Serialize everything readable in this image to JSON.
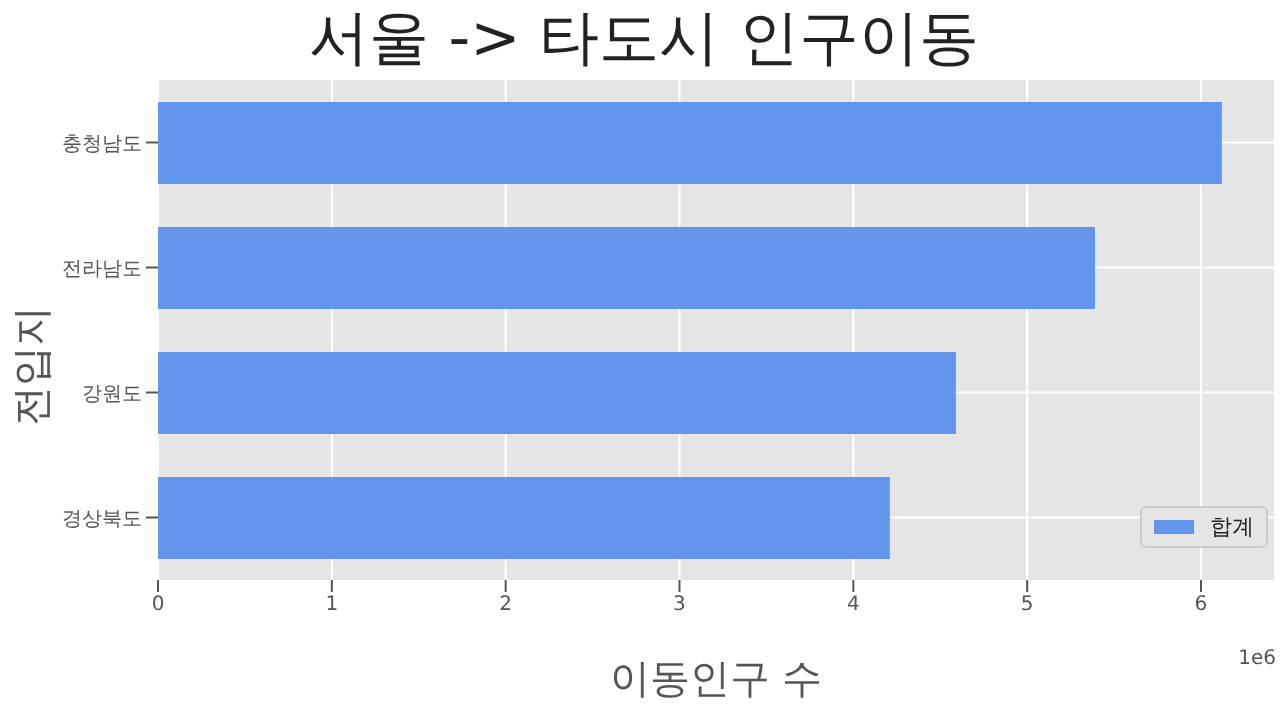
{
  "chart_data": {
    "type": "bar",
    "orientation": "horizontal",
    "title": "서울 -> 타도시 인구이동",
    "xlabel": "이동인구 수",
    "ylabel": "전입지",
    "categories": [
      "충청남도",
      "전라남도",
      "강원도",
      "경상북도"
    ],
    "series": [
      {
        "name": "합계",
        "color": "#6495ed",
        "values": [
          6.12,
          5.39,
          4.59,
          4.21
        ]
      }
    ],
    "xlim": [
      0,
      6.42
    ],
    "xticks": [
      0,
      1,
      2,
      3,
      4,
      5,
      6
    ],
    "annotations": [
      "1e6"
    ],
    "grid": true,
    "legend": "bottom right"
  }
}
